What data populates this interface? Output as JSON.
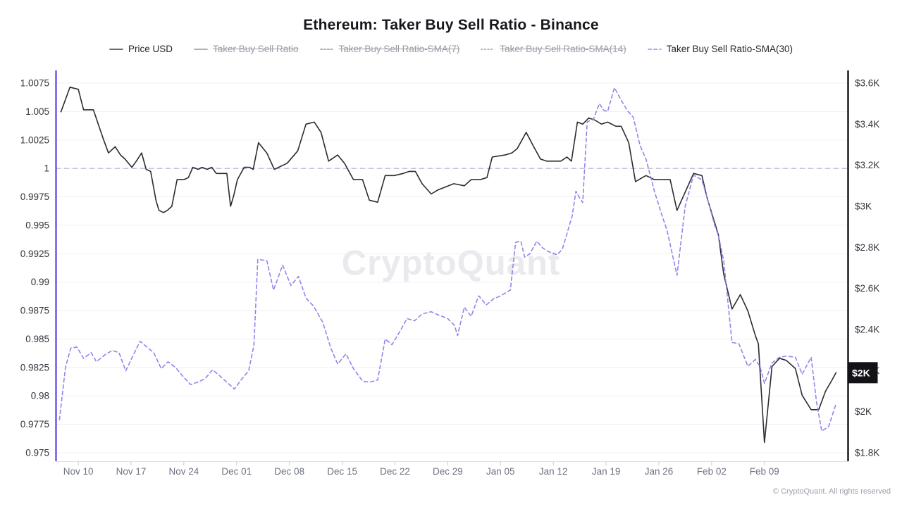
{
  "title": "Ethereum: Taker Buy Sell Ratio - Binance",
  "watermark": "CryptoQuant",
  "copyright": "© CryptoQuant. All rights reserved",
  "legend": [
    {
      "label": "Price USD",
      "disabled": false,
      "marker_color": "#55565e",
      "marker_style": "solid"
    },
    {
      "label": "Taker Buy Sell Ratio",
      "disabled": true,
      "marker_color": "#a3a4ae",
      "marker_style": "solid"
    },
    {
      "label": "Taker Buy Sell Ratio-SMA(7)",
      "disabled": true,
      "marker_color": "#a3a4ae",
      "marker_style": "dashed-fine"
    },
    {
      "label": "Taker Buy Sell Ratio-SMA(14)",
      "disabled": true,
      "marker_color": "#a3a4ae",
      "marker_style": "dotted"
    },
    {
      "label": "Taker Buy Sell Ratio-SMA(30)",
      "disabled": false,
      "marker_color": "#a39bf0",
      "marker_style": "dashed"
    }
  ],
  "chart_data": {
    "type": "line",
    "title": "Ethereum: Taker Buy Sell Ratio - Binance",
    "x_unit": "day index (0 = Nov 07)",
    "grid": true,
    "x_ticks": [
      {
        "day": 3,
        "label": "Nov 10"
      },
      {
        "day": 10,
        "label": "Nov 17"
      },
      {
        "day": 17,
        "label": "Nov 24"
      },
      {
        "day": 24,
        "label": "Dec 01"
      },
      {
        "day": 31,
        "label": "Dec 08"
      },
      {
        "day": 38,
        "label": "Dec 15"
      },
      {
        "day": 45,
        "label": "Dec 22"
      },
      {
        "day": 52,
        "label": "Dec 29"
      },
      {
        "day": 59,
        "label": "Jan 05"
      },
      {
        "day": 66,
        "label": "Jan 12"
      },
      {
        "day": 73,
        "label": "Jan 19"
      },
      {
        "day": 80,
        "label": "Jan 26"
      },
      {
        "day": 87,
        "label": "Feb 02"
      },
      {
        "day": 94,
        "label": "Feb 09"
      }
    ],
    "left_axis": {
      "min": 0.975,
      "max": 1.0075,
      "color": "#6a5ae6",
      "ticks": [
        {
          "v": 1.0075,
          "label": "1.0075"
        },
        {
          "v": 1.005,
          "label": "1.005"
        },
        {
          "v": 1.0025,
          "label": "1.0025"
        },
        {
          "v": 1.0,
          "label": "1"
        },
        {
          "v": 0.9975,
          "label": "0.9975"
        },
        {
          "v": 0.995,
          "label": "0.995"
        },
        {
          "v": 0.9925,
          "label": "0.9925"
        },
        {
          "v": 0.99,
          "label": "0.99"
        },
        {
          "v": 0.9875,
          "label": "0.9875"
        },
        {
          "v": 0.985,
          "label": "0.985"
        },
        {
          "v": 0.9825,
          "label": "0.9825"
        },
        {
          "v": 0.98,
          "label": "0.98"
        },
        {
          "v": 0.9775,
          "label": "0.9775"
        },
        {
          "v": 0.975,
          "label": "0.975"
        }
      ]
    },
    "right_axis": {
      "min": 1.8,
      "max": 3.6,
      "unit": "USD (thousands)",
      "color": "#17171d",
      "ticks": [
        {
          "v": 3.6,
          "label": "$3.6K"
        },
        {
          "v": 3.4,
          "label": "$3.4K"
        },
        {
          "v": 3.2,
          "label": "$3.2K"
        },
        {
          "v": 3.0,
          "label": "$3K"
        },
        {
          "v": 2.8,
          "label": "$2.8K"
        },
        {
          "v": 2.6,
          "label": "$2.6K"
        },
        {
          "v": 2.4,
          "label": "$2.4K"
        },
        {
          "v": 2.2,
          "label": "$2.2K"
        },
        {
          "v": 2.0,
          "label": "$2K"
        },
        {
          "v": 1.8,
          "label": "$1.8K"
        }
      ]
    },
    "reference_line": {
      "axis": "left",
      "value": 1.0
    },
    "last_price_badge": {
      "label": "$2K",
      "value": 2.19
    },
    "series": [
      {
        "name": "Price USD",
        "axis": "right",
        "color": "#2b2b33",
        "style": "solid",
        "points": [
          [
            0.7,
            3.46
          ],
          [
            1.9,
            3.58
          ],
          [
            3.0,
            3.57
          ],
          [
            3.7,
            3.47
          ],
          [
            5.0,
            3.47
          ],
          [
            6.3,
            3.33
          ],
          [
            7.0,
            3.26
          ],
          [
            7.9,
            3.29
          ],
          [
            8.6,
            3.25
          ],
          [
            9.2,
            3.23
          ],
          [
            10.1,
            3.19
          ],
          [
            10.7,
            3.22
          ],
          [
            11.4,
            3.26
          ],
          [
            12.0,
            3.18
          ],
          [
            12.6,
            3.17
          ],
          [
            13.3,
            3.03
          ],
          [
            13.7,
            2.98
          ],
          [
            14.3,
            2.97
          ],
          [
            14.8,
            2.98
          ],
          [
            15.4,
            3.0
          ],
          [
            16.1,
            3.13
          ],
          [
            17.0,
            3.13
          ],
          [
            17.6,
            3.14
          ],
          [
            18.2,
            3.19
          ],
          [
            18.9,
            3.18
          ],
          [
            19.4,
            3.19
          ],
          [
            20.1,
            3.18
          ],
          [
            20.7,
            3.19
          ],
          [
            21.3,
            3.16
          ],
          [
            22.2,
            3.16
          ],
          [
            22.7,
            3.16
          ],
          [
            23.2,
            3.0
          ],
          [
            23.6,
            3.05
          ],
          [
            24.1,
            3.13
          ],
          [
            25.0,
            3.19
          ],
          [
            25.7,
            3.19
          ],
          [
            26.2,
            3.18
          ],
          [
            26.9,
            3.31
          ],
          [
            28.0,
            3.26
          ],
          [
            29.0,
            3.18
          ],
          [
            30.7,
            3.21
          ],
          [
            32.1,
            3.27
          ],
          [
            33.2,
            3.4
          ],
          [
            34.3,
            3.41
          ],
          [
            35.2,
            3.36
          ],
          [
            36.2,
            3.22
          ],
          [
            37.4,
            3.25
          ],
          [
            38.3,
            3.21
          ],
          [
            39.5,
            3.13
          ],
          [
            40.7,
            3.13
          ],
          [
            41.6,
            3.03
          ],
          [
            42.7,
            3.02
          ],
          [
            43.7,
            3.15
          ],
          [
            44.9,
            3.15
          ],
          [
            46.1,
            3.16
          ],
          [
            46.9,
            3.17
          ],
          [
            47.7,
            3.17
          ],
          [
            48.6,
            3.11
          ],
          [
            49.8,
            3.06
          ],
          [
            50.7,
            3.08
          ],
          [
            52.1,
            3.1
          ],
          [
            52.8,
            3.11
          ],
          [
            54.2,
            3.1
          ],
          [
            55.1,
            3.13
          ],
          [
            56.3,
            3.13
          ],
          [
            57.2,
            3.14
          ],
          [
            57.9,
            3.24
          ],
          [
            59.6,
            3.25
          ],
          [
            60.5,
            3.26
          ],
          [
            61.2,
            3.28
          ],
          [
            62.4,
            3.36
          ],
          [
            63.4,
            3.29
          ],
          [
            64.3,
            3.23
          ],
          [
            65.1,
            3.22
          ],
          [
            65.9,
            3.22
          ],
          [
            67.0,
            3.22
          ],
          [
            67.8,
            3.24
          ],
          [
            68.4,
            3.22
          ],
          [
            69.2,
            3.41
          ],
          [
            69.9,
            3.4
          ],
          [
            70.7,
            3.43
          ],
          [
            71.5,
            3.42
          ],
          [
            72.4,
            3.4
          ],
          [
            73.2,
            3.41
          ],
          [
            74.3,
            3.39
          ],
          [
            75.0,
            3.39
          ],
          [
            76.0,
            3.31
          ],
          [
            76.9,
            3.12
          ],
          [
            77.8,
            3.14
          ],
          [
            78.3,
            3.15
          ],
          [
            79.4,
            3.13
          ],
          [
            81.5,
            3.13
          ],
          [
            82.4,
            2.98
          ],
          [
            84.6,
            3.16
          ],
          [
            85.7,
            3.15
          ],
          [
            86.4,
            3.04
          ],
          [
            87.4,
            2.92
          ],
          [
            87.9,
            2.86
          ],
          [
            88.6,
            2.67
          ],
          [
            89.7,
            2.5
          ],
          [
            90.8,
            2.57
          ],
          [
            91.8,
            2.49
          ],
          [
            92.8,
            2.37
          ],
          [
            93.2,
            2.33
          ],
          [
            94.0,
            1.85
          ],
          [
            95.0,
            2.22
          ],
          [
            96.0,
            2.26
          ],
          [
            96.9,
            2.25
          ],
          [
            98.1,
            2.21
          ],
          [
            99.0,
            2.08
          ],
          [
            100.2,
            2.01
          ],
          [
            101.2,
            2.01
          ],
          [
            102.1,
            2.1
          ],
          [
            102.9,
            2.15
          ],
          [
            103.5,
            2.19
          ]
        ]
      },
      {
        "name": "Taker Buy Sell Ratio-SMA(30)",
        "axis": "left",
        "color": "#8f86ea",
        "style": "dashed",
        "points": [
          [
            0.5,
            0.9779
          ],
          [
            1.3,
            0.9825
          ],
          [
            2.0,
            0.9842
          ],
          [
            2.8,
            0.9843
          ],
          [
            3.7,
            0.9833
          ],
          [
            4.7,
            0.9838
          ],
          [
            5.4,
            0.983
          ],
          [
            6.5,
            0.9836
          ],
          [
            7.5,
            0.984
          ],
          [
            8.4,
            0.9838
          ],
          [
            9.3,
            0.9822
          ],
          [
            10.3,
            0.9836
          ],
          [
            11.2,
            0.9848
          ],
          [
            12.1,
            0.9843
          ],
          [
            13.0,
            0.9838
          ],
          [
            14.0,
            0.9824
          ],
          [
            14.9,
            0.983
          ],
          [
            15.9,
            0.9825
          ],
          [
            16.9,
            0.9817
          ],
          [
            17.9,
            0.981
          ],
          [
            18.8,
            0.9812
          ],
          [
            19.8,
            0.9815
          ],
          [
            20.8,
            0.9823
          ],
          [
            21.7,
            0.9818
          ],
          [
            22.7,
            0.9812
          ],
          [
            23.7,
            0.9806
          ],
          [
            24.7,
            0.9815
          ],
          [
            25.6,
            0.9822
          ],
          [
            26.3,
            0.9845
          ],
          [
            26.8,
            0.992
          ],
          [
            28.0,
            0.9919
          ],
          [
            28.9,
            0.9893
          ],
          [
            30.1,
            0.9915
          ],
          [
            31.2,
            0.9897
          ],
          [
            32.2,
            0.9905
          ],
          [
            33.2,
            0.9886
          ],
          [
            34.2,
            0.9879
          ],
          [
            35.4,
            0.9865
          ],
          [
            36.5,
            0.9842
          ],
          [
            37.4,
            0.9828
          ],
          [
            38.5,
            0.9837
          ],
          [
            39.5,
            0.9824
          ],
          [
            40.7,
            0.9813
          ],
          [
            41.6,
            0.9812
          ],
          [
            42.7,
            0.9814
          ],
          [
            43.7,
            0.985
          ],
          [
            44.6,
            0.9845
          ],
          [
            45.6,
            0.9856
          ],
          [
            46.6,
            0.9868
          ],
          [
            47.6,
            0.9866
          ],
          [
            48.6,
            0.9872
          ],
          [
            49.8,
            0.9874
          ],
          [
            50.8,
            0.9871
          ],
          [
            52.0,
            0.9868
          ],
          [
            52.9,
            0.9862
          ],
          [
            53.3,
            0.9853
          ],
          [
            54.2,
            0.9878
          ],
          [
            55.1,
            0.987
          ],
          [
            56.1,
            0.9888
          ],
          [
            57.1,
            0.988
          ],
          [
            58.0,
            0.9885
          ],
          [
            59.0,
            0.9888
          ],
          [
            60.3,
            0.9893
          ],
          [
            61.0,
            0.9935
          ],
          [
            61.7,
            0.9936
          ],
          [
            62.2,
            0.9922
          ],
          [
            62.9,
            0.9925
          ],
          [
            63.8,
            0.9936
          ],
          [
            64.6,
            0.993
          ],
          [
            65.3,
            0.9927
          ],
          [
            66.5,
            0.9924
          ],
          [
            67.2,
            0.9929
          ],
          [
            68.0,
            0.9947
          ],
          [
            68.5,
            0.9958
          ],
          [
            69.0,
            0.998
          ],
          [
            69.4,
            0.9975
          ],
          [
            69.9,
            0.997
          ],
          [
            70.5,
            1.0041
          ],
          [
            71.3,
            1.0043
          ],
          [
            72.1,
            1.0057
          ],
          [
            72.7,
            1.0051
          ],
          [
            73.2,
            1.005
          ],
          [
            74.1,
            1.0071
          ],
          [
            75.0,
            1.006
          ],
          [
            75.8,
            1.0051
          ],
          [
            76.6,
            1.0045
          ],
          [
            77.5,
            1.002
          ],
          [
            78.3,
            1.0008
          ],
          [
            79.4,
            0.998
          ],
          [
            80.3,
            0.9961
          ],
          [
            81.1,
            0.9945
          ],
          [
            82.4,
            0.9906
          ],
          [
            83.5,
            0.9967
          ],
          [
            84.6,
            0.9994
          ],
          [
            85.7,
            0.999
          ],
          [
            86.7,
            0.9967
          ],
          [
            87.4,
            0.995
          ],
          [
            87.9,
            0.9941
          ],
          [
            88.6,
            0.9919
          ],
          [
            89.7,
            0.9847
          ],
          [
            90.6,
            0.9846
          ],
          [
            91.8,
            0.9826
          ],
          [
            92.8,
            0.9832
          ],
          [
            93.4,
            0.9826
          ],
          [
            94.0,
            0.9811
          ],
          [
            95.0,
            0.9829
          ],
          [
            96.0,
            0.9834
          ],
          [
            96.9,
            0.9835
          ],
          [
            98.1,
            0.9834
          ],
          [
            99.0,
            0.9819
          ],
          [
            100.2,
            0.9834
          ],
          [
            100.9,
            0.9795
          ],
          [
            101.6,
            0.9769
          ],
          [
            102.5,
            0.9773
          ],
          [
            103.5,
            0.9793
          ]
        ]
      }
    ]
  }
}
